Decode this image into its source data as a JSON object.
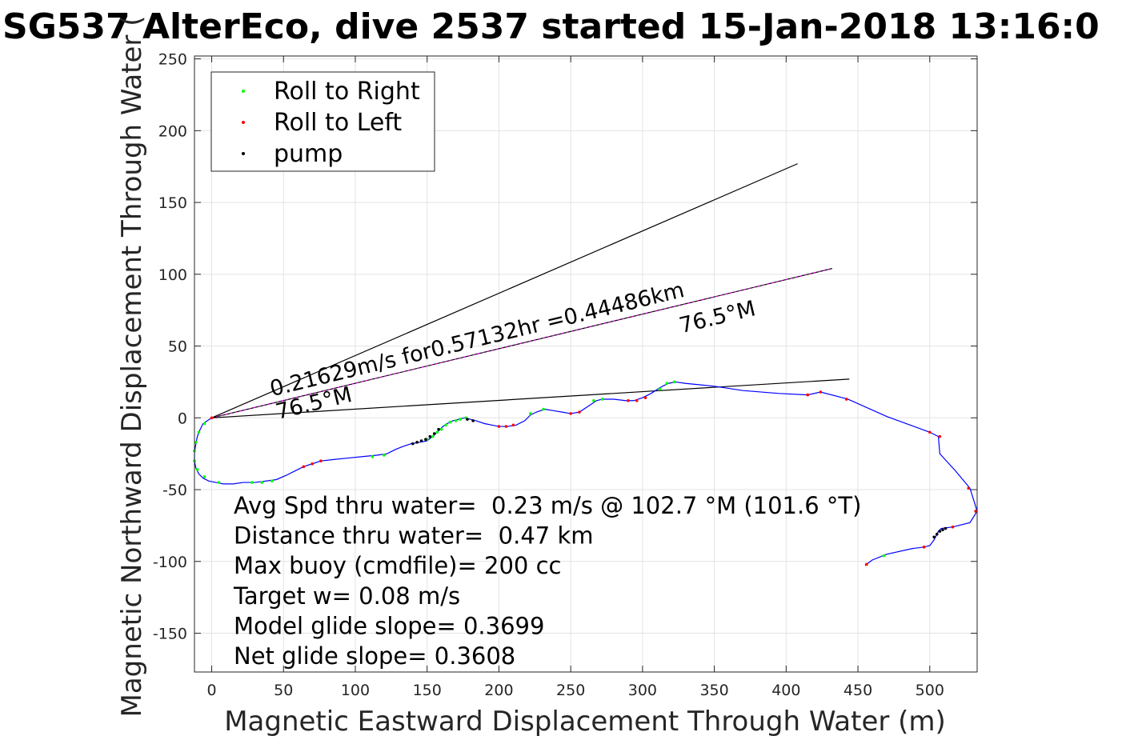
{
  "chart_data": {
    "type": "line",
    "title": "SG537 AlterEco, dive 2537 started 15-Jan-2018 13:16:0",
    "xlabel": "Magnetic Eastward Displacement Through Water (m)",
    "ylabel": "Magnetic Northward Displacement Through Water (",
    "xlim": [
      -12,
      533
    ],
    "ylim": [
      -177,
      252
    ],
    "xticks": [
      0,
      50,
      100,
      150,
      200,
      250,
      300,
      350,
      400,
      450,
      500
    ],
    "yticks": [
      -150,
      -100,
      -50,
      0,
      50,
      100,
      150,
      200,
      250
    ],
    "grid": true,
    "legend_placement": "top-left",
    "legend": [
      {
        "label": "Roll to Right",
        "marker": "dot",
        "color": "#00ff00"
      },
      {
        "label": "Roll to Left",
        "marker": "dot",
        "color": "#ff0000"
      },
      {
        "label": "pump",
        "marker": "dot",
        "color": "#000000"
      }
    ],
    "track": {
      "color": "#0000ff",
      "points": [
        [
          0,
          0
        ],
        [
          -3,
          -2
        ],
        [
          -6,
          -4
        ],
        [
          -8,
          -8
        ],
        [
          -10,
          -13
        ],
        [
          -11,
          -18
        ],
        [
          -12,
          -24
        ],
        [
          -12,
          -30
        ],
        [
          -11,
          -35
        ],
        [
          -9,
          -39
        ],
        [
          -6,
          -42
        ],
        [
          -2,
          -44
        ],
        [
          3,
          -45
        ],
        [
          8,
          -46
        ],
        [
          15,
          -46
        ],
        [
          22,
          -45
        ],
        [
          30,
          -45
        ],
        [
          38,
          -44
        ],
        [
          45,
          -43
        ],
        [
          52,
          -40
        ],
        [
          58,
          -37
        ],
        [
          64,
          -34
        ],
        [
          70,
          -32
        ],
        [
          76,
          -30
        ],
        [
          85,
          -29
        ],
        [
          95,
          -28
        ],
        [
          105,
          -27
        ],
        [
          115,
          -26
        ],
        [
          122,
          -25
        ],
        [
          128,
          -22
        ],
        [
          133,
          -20
        ],
        [
          139,
          -18
        ],
        [
          145,
          -17
        ],
        [
          150,
          -16
        ],
        [
          155,
          -12
        ],
        [
          158,
          -9
        ],
        [
          161,
          -6
        ],
        [
          164,
          -4
        ],
        [
          168,
          -2
        ],
        [
          172,
          -1
        ],
        [
          176,
          0
        ],
        [
          180,
          -1
        ],
        [
          184,
          -2
        ],
        [
          190,
          -4
        ],
        [
          195,
          -5
        ],
        [
          200,
          -6
        ],
        [
          206,
          -6
        ],
        [
          212,
          -5
        ],
        [
          218,
          -2
        ],
        [
          222,
          2
        ],
        [
          226,
          4
        ],
        [
          232,
          6
        ],
        [
          238,
          5
        ],
        [
          244,
          4
        ],
        [
          250,
          3
        ],
        [
          256,
          4
        ],
        [
          262,
          8
        ],
        [
          268,
          12
        ],
        [
          272,
          13
        ],
        [
          280,
          13
        ],
        [
          288,
          12
        ],
        [
          294,
          12
        ],
        [
          300,
          14
        ],
        [
          306,
          17
        ],
        [
          312,
          21
        ],
        [
          318,
          24
        ],
        [
          323,
          25
        ],
        [
          330,
          24
        ],
        [
          340,
          23
        ],
        [
          350,
          22
        ],
        [
          370,
          19
        ],
        [
          395,
          17
        ],
        [
          415,
          16
        ],
        [
          424,
          18
        ],
        [
          443,
          13
        ],
        [
          470,
          1
        ],
        [
          500,
          -10
        ],
        [
          506,
          -13
        ],
        [
          507,
          -25
        ],
        [
          518,
          -37
        ],
        [
          528,
          -49
        ],
        [
          533,
          -65
        ],
        [
          528,
          -73
        ],
        [
          516,
          -76
        ],
        [
          508,
          -77
        ],
        [
          506,
          -79
        ],
        [
          503,
          -85
        ],
        [
          500,
          -89
        ],
        [
          496,
          -90
        ],
        [
          488,
          -91
        ],
        [
          470,
          -95
        ],
        [
          460,
          -99
        ],
        [
          456,
          -102
        ],
        [
          455,
          -103
        ]
      ]
    },
    "roll_right_points": [
      [
        -5,
        -4
      ],
      [
        -9,
        -10
      ],
      [
        -11,
        -17
      ],
      [
        -12,
        -23
      ],
      [
        -12,
        -30
      ],
      [
        -10,
        -36
      ],
      [
        -5,
        -41
      ],
      [
        5,
        -45
      ],
      [
        28,
        -45
      ],
      [
        35,
        -45
      ],
      [
        42,
        -44
      ],
      [
        112,
        -27
      ],
      [
        120,
        -26
      ],
      [
        150,
        -15
      ],
      [
        154,
        -13
      ],
      [
        157,
        -10
      ],
      [
        160,
        -8
      ],
      [
        163,
        -5
      ],
      [
        166,
        -3
      ],
      [
        170,
        -2
      ],
      [
        173,
        -1
      ],
      [
        177,
        0
      ],
      [
        222,
        3
      ],
      [
        231,
        6
      ],
      [
        266,
        12
      ],
      [
        272,
        13
      ],
      [
        312,
        20
      ],
      [
        317,
        24
      ],
      [
        322,
        25
      ],
      [
        468,
        -96
      ]
    ],
    "roll_left_points": [
      [
        0,
        0
      ],
      [
        64,
        -34
      ],
      [
        70,
        -32
      ],
      [
        76,
        -30
      ],
      [
        200,
        -6
      ],
      [
        205,
        -6
      ],
      [
        210,
        -5
      ],
      [
        250,
        3
      ],
      [
        256,
        4
      ],
      [
        290,
        12
      ],
      [
        296,
        12
      ],
      [
        302,
        14
      ],
      [
        415,
        16
      ],
      [
        424,
        18
      ],
      [
        442,
        13
      ],
      [
        500,
        -10
      ],
      [
        507,
        -13
      ],
      [
        527,
        -49
      ],
      [
        532,
        -65
      ],
      [
        516,
        -76
      ],
      [
        496,
        -90
      ],
      [
        456,
        -102
      ]
    ],
    "pump_points": [
      [
        140,
        -18
      ],
      [
        143,
        -17
      ],
      [
        146,
        -16
      ],
      [
        149,
        -15
      ],
      [
        152,
        -13
      ],
      [
        155,
        -11
      ],
      [
        158,
        -8
      ],
      [
        178,
        -1
      ],
      [
        182,
        -2
      ],
      [
        505,
        -81
      ],
      [
        507,
        -79
      ],
      [
        509,
        -78
      ],
      [
        511,
        -77
      ],
      [
        503,
        -83
      ]
    ],
    "heading_lines": [
      {
        "to": [
          408,
          177
        ],
        "color": "#000000"
      },
      {
        "to": [
          432,
          104
        ],
        "color": "#000000",
        "overlay_color": "#ff00ff"
      },
      {
        "to": [
          444,
          27
        ],
        "color": "#000000"
      }
    ],
    "annotations": [
      {
        "text": "0.21629m/s for0.57132hr =0.44486km",
        "at": [
          42,
          15
        ],
        "angle": 13.6
      },
      {
        "text": "76.5°M",
        "at": [
          46,
          -1
        ],
        "angle": 13.6
      },
      {
        "text": "76.5°M",
        "at": [
          327,
          59
        ],
        "angle": 13.6
      }
    ],
    "stats": [
      "Avg Spd thru water=  0.23 m/s @ 102.7 °M (101.6 °T)",
      "Distance thru water=  0.47 km",
      "Max buoy (cmdfile)= 200 cc",
      "Target w= 0.08 m/s",
      "Model glide slope= 0.3699",
      "Net glide slope= 0.3608"
    ]
  }
}
